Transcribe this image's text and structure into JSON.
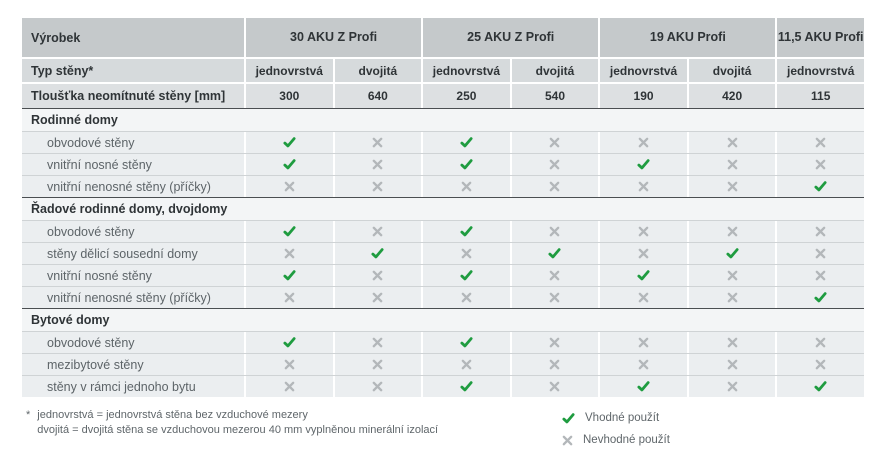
{
  "table": {
    "header": {
      "product_label": "Výrobek",
      "products": [
        {
          "name": "30 AKU Z Profi",
          "span": 2
        },
        {
          "name": "25 AKU Z Profi",
          "span": 2
        },
        {
          "name": "19 AKU Profi",
          "span": 2
        },
        {
          "name": "11,5 AKU Profi",
          "span": 1
        }
      ],
      "wall_type_label": "Typ stěny*",
      "wall_types": [
        "jednovrstvá",
        "dvojitá",
        "jednovrstvá",
        "dvojitá",
        "jednovrstvá",
        "dvojitá",
        "jednovrstvá"
      ],
      "thickness_label": "Tloušťka neomítnuté stěny [mm]",
      "thicknesses": [
        "300",
        "640",
        "250",
        "540",
        "190",
        "420",
        "115"
      ]
    },
    "sections": [
      {
        "title": "Rodinné domy",
        "rows": [
          {
            "label": "obvodové stěny",
            "marks": [
              "yes",
              "no",
              "yes",
              "no",
              "no",
              "no",
              "no"
            ]
          },
          {
            "label": "vnitřní nosné stěny",
            "marks": [
              "yes",
              "no",
              "yes",
              "no",
              "yes",
              "no",
              "no"
            ]
          },
          {
            "label": "vnitřní nenosné stěny (příčky)",
            "marks": [
              "no",
              "no",
              "no",
              "no",
              "no",
              "no",
              "yes"
            ]
          }
        ]
      },
      {
        "title": "Řadové rodinné domy, dvojdomy",
        "rows": [
          {
            "label": "obvodové stěny",
            "marks": [
              "yes",
              "no",
              "yes",
              "no",
              "no",
              "no",
              "no"
            ]
          },
          {
            "label": "stěny dělicí sousední domy",
            "marks": [
              "no",
              "yes",
              "no",
              "yes",
              "no",
              "yes",
              "no"
            ]
          },
          {
            "label": "vnitřní nosné stěny",
            "marks": [
              "yes",
              "no",
              "yes",
              "no",
              "yes",
              "no",
              "no"
            ]
          },
          {
            "label": "vnitřní nenosné stěny (příčky)",
            "marks": [
              "no",
              "no",
              "no",
              "no",
              "no",
              "no",
              "yes"
            ]
          }
        ]
      },
      {
        "title": "Bytové domy",
        "rows": [
          {
            "label": "obvodové stěny",
            "marks": [
              "yes",
              "no",
              "yes",
              "no",
              "no",
              "no",
              "no"
            ]
          },
          {
            "label": "mezibytové stěny",
            "marks": [
              "no",
              "no",
              "no",
              "no",
              "no",
              "no",
              "no"
            ]
          },
          {
            "label": "stěny v rámci jednoho bytu",
            "marks": [
              "no",
              "no",
              "yes",
              "no",
              "yes",
              "no",
              "yes"
            ]
          }
        ]
      }
    ]
  },
  "footnote": {
    "marker": "*",
    "line1": "jednovrstvá = jednovrstvá stěna bez vzduchové mezery",
    "line2": "dvojitá = dvojitá stěna se vzduchovou mezerou 40 mm vyplněnou minerální izolací"
  },
  "legend": {
    "suitable": "Vhodné použít",
    "unsuitable": "Nevhodné použít"
  },
  "icons": {
    "check": "check-icon",
    "cross": "cross-icon"
  },
  "colors": {
    "check_green": "#1f9c40",
    "cross_gray": "#b3b7ba",
    "header_gray": "#c5c9cb",
    "row_light": "#ebeef0"
  }
}
